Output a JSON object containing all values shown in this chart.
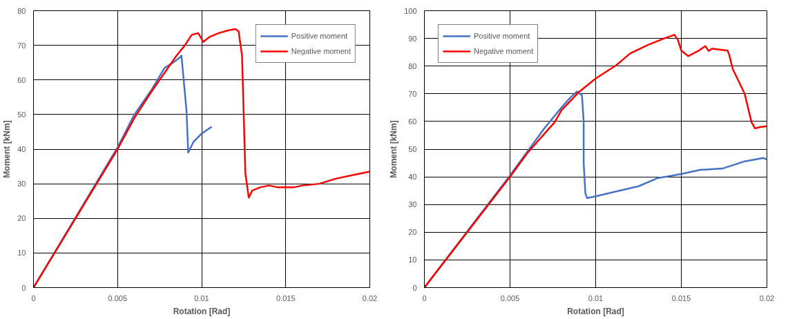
{
  "chart_data": [
    {
      "type": "line",
      "xlabel": "Rotation [Rad]",
      "ylabel": "Moment [kNm]",
      "xlim": [
        0,
        0.02
      ],
      "ylim": [
        0,
        80
      ],
      "xticks": [
        0,
        0.005,
        0.01,
        0.015,
        0.02
      ],
      "yticks": [
        0,
        10,
        20,
        30,
        40,
        50,
        60,
        70,
        80
      ],
      "grid": true,
      "legend": "top right",
      "line_style": "solid",
      "marker": "none",
      "series": [
        {
          "name": "Positive moment",
          "color": "#4472c4",
          "x": [
            0,
            0.005,
            0.006,
            0.007,
            0.0078,
            0.0083,
            0.0087,
            0.0088,
            0.0091,
            0.0092,
            0.0095,
            0.01,
            0.0106
          ],
          "values": [
            0,
            40.5,
            50,
            57,
            63.5,
            65,
            66.5,
            67,
            51,
            39,
            42,
            44.5,
            46.5
          ]
        },
        {
          "name": "Negative moment",
          "color": "#ff0000",
          "x": [
            0,
            0.005,
            0.006,
            0.007,
            0.008,
            0.0085,
            0.009,
            0.0094,
            0.0098,
            0.0101,
            0.0105,
            0.011,
            0.0115,
            0.012,
            0.0122,
            0.0124,
            0.0125,
            0.0126,
            0.0128,
            0.013,
            0.0135,
            0.014,
            0.0145,
            0.0155,
            0.016,
            0.017,
            0.018,
            0.019,
            0.02
          ],
          "values": [
            0,
            40,
            49,
            56.5,
            63.5,
            67,
            70,
            73,
            73.5,
            71,
            72.5,
            73.5,
            74.2,
            74.7,
            74,
            67,
            50,
            33,
            26,
            28,
            29,
            29.5,
            29,
            29,
            29.5,
            30,
            31.5,
            32.5,
            33.5
          ]
        }
      ]
    },
    {
      "type": "line",
      "xlabel": "Rotation [Rad]",
      "ylabel": "Moment [kNm]",
      "xlim": [
        0,
        0.02
      ],
      "ylim": [
        0,
        100
      ],
      "xticks": [
        0,
        0.005,
        0.01,
        0.015,
        0.02
      ],
      "yticks": [
        0,
        10,
        20,
        30,
        40,
        50,
        60,
        70,
        80,
        90,
        100
      ],
      "grid": true,
      "legend": "top left",
      "line_style": "solid",
      "marker": "none",
      "series": [
        {
          "name": "Positive moment",
          "color": "#4472c4",
          "x": [
            0,
            0.005,
            0.006,
            0.007,
            0.008,
            0.0085,
            0.0089,
            0.0092,
            0.0093,
            0.0093,
            0.0094,
            0.0095,
            0.01,
            0.0125,
            0.0136,
            0.015,
            0.0161,
            0.0174,
            0.0187,
            0.0198,
            0.02
          ],
          "values": [
            0,
            40.5,
            49,
            57.5,
            65,
            68.5,
            70.8,
            69.5,
            60,
            45,
            34,
            32.3,
            33,
            36.6,
            39.5,
            41,
            42.5,
            43,
            45.6,
            46.8,
            46.2
          ]
        },
        {
          "name": "Negative moment",
          "color": "#ff0000",
          "x": [
            0,
            0.005,
            0.006,
            0.007,
            0.0076,
            0.008,
            0.009,
            0.01,
            0.0112,
            0.012,
            0.013,
            0.014,
            0.0146,
            0.0148,
            0.015,
            0.0154,
            0.016,
            0.0164,
            0.0166,
            0.0168,
            0.0177,
            0.0178,
            0.018,
            0.0187,
            0.0191,
            0.0193,
            0.0196,
            0.02
          ],
          "values": [
            0,
            40,
            48.5,
            55.5,
            59.7,
            64,
            70.5,
            75.5,
            80.3,
            84.5,
            87.5,
            90,
            91.3,
            89.5,
            85.6,
            83.6,
            85.5,
            87.2,
            85.5,
            86.3,
            85.6,
            84,
            79,
            70,
            59.7,
            57.5,
            58,
            58.3
          ]
        }
      ]
    }
  ]
}
